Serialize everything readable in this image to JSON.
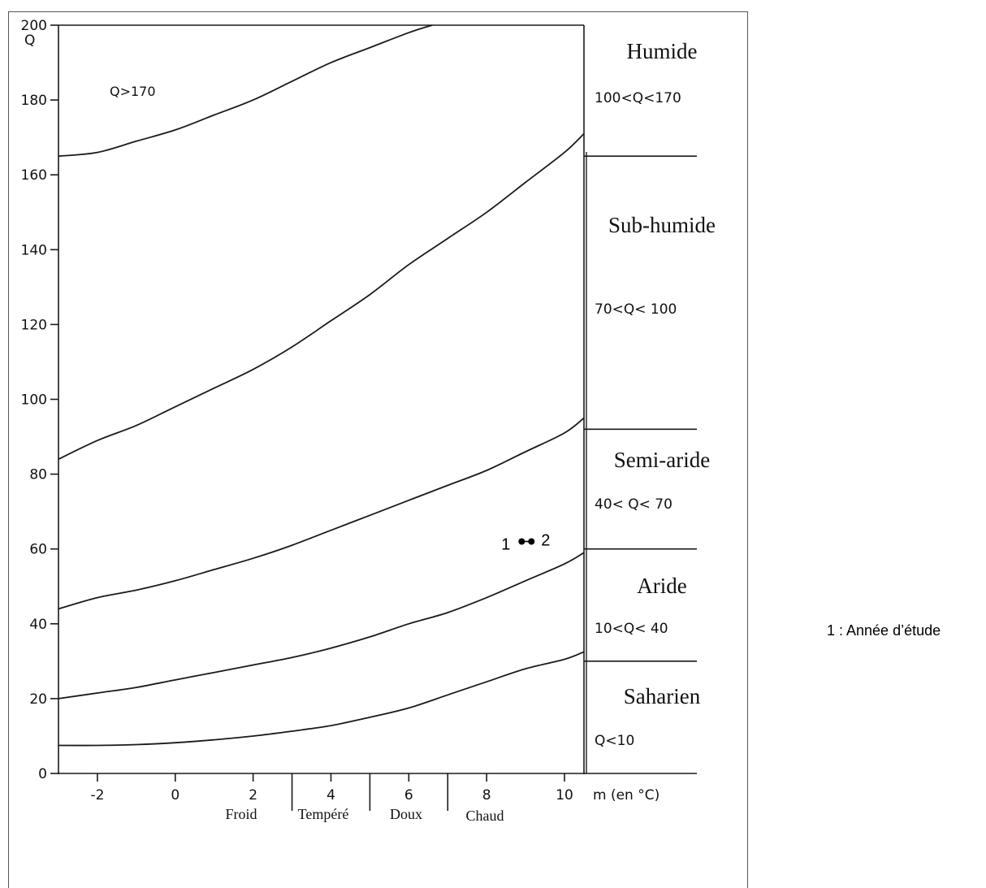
{
  "chart_data": {
    "type": "line",
    "title": "",
    "xlabel": "m (en °C)",
    "ylabel": "Q",
    "xlim": [
      -3,
      10.5
    ],
    "ylim": [
      0,
      200
    ],
    "x_ticks": [
      {
        "value": -2,
        "label": "-2"
      },
      {
        "value": 0,
        "label": "0"
      },
      {
        "value": 2,
        "label": "2"
      },
      {
        "value": 4,
        "label": "4"
      },
      {
        "value": 6,
        "label": "6"
      },
      {
        "value": 8,
        "label": "8"
      },
      {
        "value": 10,
        "label": "10"
      }
    ],
    "y_ticks": [
      {
        "value": 0,
        "label": "0"
      },
      {
        "value": 20,
        "label": "20"
      },
      {
        "value": 40,
        "label": "40"
      },
      {
        "value": 60,
        "label": "60"
      },
      {
        "value": 80,
        "label": "80"
      },
      {
        "value": 100,
        "label": "100"
      },
      {
        "value": 120,
        "label": "120"
      },
      {
        "value": 140,
        "label": "140"
      },
      {
        "value": 160,
        "label": "160"
      },
      {
        "value": 180,
        "label": "180"
      },
      {
        "value": 200,
        "label": "200"
      }
    ],
    "series": [
      {
        "x": [
          -3,
          -2,
          -1,
          0,
          1,
          2,
          3,
          4,
          5,
          6,
          6.6
        ],
        "y": [
          165,
          166,
          169,
          172,
          176,
          180,
          185,
          190,
          194,
          198,
          200
        ]
      },
      {
        "x": [
          -3,
          -2,
          -1,
          0,
          1,
          2,
          3,
          4,
          5,
          6,
          7,
          8,
          9,
          10,
          10.5
        ],
        "y": [
          84,
          89,
          93,
          98,
          103,
          108,
          114,
          121,
          128,
          136,
          143,
          150,
          158,
          166,
          171
        ]
      },
      {
        "x": [
          -3,
          -2,
          -1,
          0,
          1,
          2,
          3,
          4,
          5,
          6,
          7,
          8,
          9,
          10,
          10.5
        ],
        "y": [
          44,
          47,
          49,
          51.5,
          54.5,
          57.5,
          61,
          65,
          69,
          73,
          77,
          81,
          86,
          91,
          95
        ]
      },
      {
        "x": [
          -3,
          -2,
          -1,
          0,
          1,
          2,
          3,
          4,
          5,
          6,
          7,
          8,
          9,
          10,
          10.5
        ],
        "y": [
          20,
          21.5,
          23,
          25,
          27,
          29,
          31,
          33.5,
          36.5,
          40,
          43,
          47,
          51.5,
          56,
          59
        ]
      },
      {
        "x": [
          -3,
          -2,
          -1,
          0,
          1,
          2,
          3,
          4,
          5,
          6,
          7,
          8,
          9,
          10,
          10.5
        ],
        "y": [
          7.5,
          7.5,
          7.7,
          8.2,
          9,
          10,
          11.3,
          12.8,
          15,
          17.5,
          21,
          24.5,
          28,
          30.5,
          32.5
        ]
      }
    ],
    "points": [
      {
        "x": 8.9,
        "y": 62,
        "label": "1"
      },
      {
        "x": 9.15,
        "y": 62,
        "label": "2"
      }
    ],
    "region_separators_q": [
      165,
      92,
      60,
      30
    ],
    "zones": [
      {
        "name": "Humide",
        "range": "100<Q<170"
      },
      {
        "name": "Sub-humide",
        "range": "70<Q< 100"
      },
      {
        "name": "Semi-aride",
        "range": "40< Q< 70"
      },
      {
        "name": "Aride",
        "range": "10<Q< 40"
      },
      {
        "name": "Saharien",
        "range": "Q<10"
      }
    ],
    "winter_categories": [
      {
        "label": "Froid",
        "from": -3,
        "to": 3
      },
      {
        "label": "Tempéré",
        "from": 3,
        "to": 5
      },
      {
        "label": "Doux",
        "from": 5,
        "to": 7
      },
      {
        "label": "Chaud",
        "from": 7,
        "to": 10.5
      }
    ],
    "category_dividers": [
      3,
      5,
      7
    ],
    "annotation_top": "Q>170",
    "grid": false,
    "legend": "none"
  },
  "note": "1 : Année d’étude"
}
